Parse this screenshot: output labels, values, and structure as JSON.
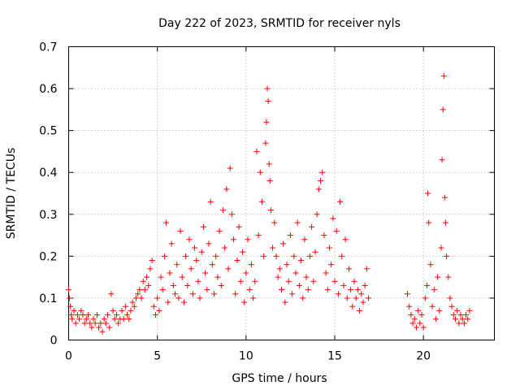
{
  "chart_data": {
    "type": "scatter",
    "title": "Day 222 of 2023, SRMTID for receiver nyls",
    "xlabel": "GPS time / hours",
    "ylabel": "SRMTID / TECUs",
    "xlim": [
      0,
      24
    ],
    "ylim": [
      0,
      0.7
    ],
    "xticks": [
      0,
      5,
      10,
      15,
      20
    ],
    "yticks": [
      0,
      0.1,
      0.2,
      0.3,
      0.4,
      0.5,
      0.6,
      0.7
    ],
    "xtick_labels": [
      "0",
      "5",
      "10",
      "15",
      "20"
    ],
    "ytick_labels": [
      "0",
      "0.1",
      "0.2",
      "0.3",
      "0.4",
      "0.5",
      "0.6",
      "0.7"
    ],
    "grid": true,
    "marker": "+",
    "color": "#ff0000",
    "series": [
      {
        "name": "SRMTID",
        "points": [
          [
            0.0,
            0.12
          ],
          [
            0.05,
            0.1
          ],
          [
            0.1,
            0.08
          ],
          [
            0.15,
            0.06
          ],
          [
            0.2,
            0.05
          ],
          [
            0.3,
            0.07
          ],
          [
            0.4,
            0.04
          ],
          [
            0.5,
            0.06
          ],
          [
            0.6,
            0.05
          ],
          [
            0.7,
            0.07
          ],
          [
            0.8,
            0.06
          ],
          [
            0.9,
            0.04
          ],
          [
            1.0,
            0.05
          ],
          [
            1.1,
            0.06
          ],
          [
            1.2,
            0.04
          ],
          [
            1.3,
            0.03
          ],
          [
            1.4,
            0.05
          ],
          [
            1.5,
            0.04
          ],
          [
            1.6,
            0.06
          ],
          [
            1.7,
            0.03
          ],
          [
            1.8,
            0.04
          ],
          [
            1.9,
            0.02
          ],
          [
            2.0,
            0.05
          ],
          [
            2.1,
            0.04
          ],
          [
            2.2,
            0.06
          ],
          [
            2.3,
            0.03
          ],
          [
            2.4,
            0.11
          ],
          [
            2.5,
            0.07
          ],
          [
            2.6,
            0.05
          ],
          [
            2.7,
            0.06
          ],
          [
            2.8,
            0.04
          ],
          [
            2.9,
            0.05
          ],
          [
            3.0,
            0.07
          ],
          [
            3.1,
            0.05
          ],
          [
            3.2,
            0.08
          ],
          [
            3.3,
            0.06
          ],
          [
            3.4,
            0.05
          ],
          [
            3.5,
            0.07
          ],
          [
            3.6,
            0.09
          ],
          [
            3.7,
            0.08
          ],
          [
            3.8,
            0.1
          ],
          [
            3.9,
            0.11
          ],
          [
            4.0,
            0.12
          ],
          [
            4.1,
            0.1
          ],
          [
            4.2,
            0.14
          ],
          [
            4.3,
            0.12
          ],
          [
            4.4,
            0.15
          ],
          [
            4.5,
            0.13
          ],
          [
            4.6,
            0.17
          ],
          [
            4.7,
            0.19
          ],
          [
            4.8,
            0.08
          ],
          [
            4.9,
            0.06
          ],
          [
            5.0,
            0.1
          ],
          [
            5.1,
            0.07
          ],
          [
            5.2,
            0.15
          ],
          [
            5.3,
            0.12
          ],
          [
            5.4,
            0.2
          ],
          [
            5.5,
            0.28
          ],
          [
            5.6,
            0.09
          ],
          [
            5.7,
            0.16
          ],
          [
            5.8,
            0.23
          ],
          [
            5.9,
            0.13
          ],
          [
            6.0,
            0.11
          ],
          [
            6.1,
            0.18
          ],
          [
            6.2,
            0.1
          ],
          [
            6.3,
            0.26
          ],
          [
            6.4,
            0.15
          ],
          [
            6.5,
            0.09
          ],
          [
            6.6,
            0.2
          ],
          [
            6.7,
            0.13
          ],
          [
            6.8,
            0.24
          ],
          [
            6.9,
            0.17
          ],
          [
            7.0,
            0.11
          ],
          [
            7.1,
            0.22
          ],
          [
            7.2,
            0.19
          ],
          [
            7.3,
            0.14
          ],
          [
            7.4,
            0.1
          ],
          [
            7.5,
            0.21
          ],
          [
            7.6,
            0.27
          ],
          [
            7.7,
            0.16
          ],
          [
            7.8,
            0.12
          ],
          [
            7.9,
            0.23
          ],
          [
            8.0,
            0.33
          ],
          [
            8.1,
            0.18
          ],
          [
            8.2,
            0.11
          ],
          [
            8.3,
            0.2
          ],
          [
            8.4,
            0.15
          ],
          [
            8.5,
            0.26
          ],
          [
            8.6,
            0.13
          ],
          [
            8.7,
            0.31
          ],
          [
            8.8,
            0.22
          ],
          [
            8.9,
            0.36
          ],
          [
            9.0,
            0.17
          ],
          [
            9.1,
            0.41
          ],
          [
            9.2,
            0.3
          ],
          [
            9.3,
            0.24
          ],
          [
            9.4,
            0.11
          ],
          [
            9.5,
            0.19
          ],
          [
            9.6,
            0.27
          ],
          [
            9.7,
            0.14
          ],
          [
            9.8,
            0.21
          ],
          [
            9.9,
            0.09
          ],
          [
            10.0,
            0.16
          ],
          [
            10.1,
            0.24
          ],
          [
            10.2,
            0.12
          ],
          [
            10.3,
            0.18
          ],
          [
            10.4,
            0.1
          ],
          [
            10.5,
            0.14
          ],
          [
            10.6,
            0.45
          ],
          [
            10.7,
            0.25
          ],
          [
            10.8,
            0.4
          ],
          [
            10.9,
            0.33
          ],
          [
            11.0,
            0.2
          ],
          [
            11.1,
            0.47
          ],
          [
            11.15,
            0.52
          ],
          [
            11.2,
            0.6
          ],
          [
            11.25,
            0.57
          ],
          [
            11.3,
            0.42
          ],
          [
            11.35,
            0.38
          ],
          [
            11.4,
            0.31
          ],
          [
            11.5,
            0.22
          ],
          [
            11.6,
            0.28
          ],
          [
            11.7,
            0.2
          ],
          [
            11.8,
            0.15
          ],
          [
            11.9,
            0.17
          ],
          [
            12.0,
            0.12
          ],
          [
            12.1,
            0.23
          ],
          [
            12.2,
            0.09
          ],
          [
            12.3,
            0.18
          ],
          [
            12.4,
            0.14
          ],
          [
            12.5,
            0.25
          ],
          [
            12.6,
            0.11
          ],
          [
            12.7,
            0.2
          ],
          [
            12.8,
            0.16
          ],
          [
            12.9,
            0.28
          ],
          [
            13.0,
            0.13
          ],
          [
            13.1,
            0.19
          ],
          [
            13.2,
            0.1
          ],
          [
            13.3,
            0.24
          ],
          [
            13.4,
            0.15
          ],
          [
            13.5,
            0.12
          ],
          [
            13.6,
            0.2
          ],
          [
            13.7,
            0.27
          ],
          [
            13.8,
            0.14
          ],
          [
            13.9,
            0.21
          ],
          [
            14.0,
            0.3
          ],
          [
            14.1,
            0.36
          ],
          [
            14.2,
            0.38
          ],
          [
            14.3,
            0.4
          ],
          [
            14.4,
            0.25
          ],
          [
            14.5,
            0.16
          ],
          [
            14.6,
            0.12
          ],
          [
            14.7,
            0.22
          ],
          [
            14.8,
            0.18
          ],
          [
            14.9,
            0.29
          ],
          [
            15.0,
            0.14
          ],
          [
            15.1,
            0.26
          ],
          [
            15.2,
            0.11
          ],
          [
            15.3,
            0.33
          ],
          [
            15.4,
            0.2
          ],
          [
            15.5,
            0.13
          ],
          [
            15.6,
            0.24
          ],
          [
            15.7,
            0.1
          ],
          [
            15.8,
            0.17
          ],
          [
            15.9,
            0.12
          ],
          [
            16.0,
            0.08
          ],
          [
            16.1,
            0.14
          ],
          [
            16.2,
            0.1
          ],
          [
            16.3,
            0.12
          ],
          [
            16.4,
            0.07
          ],
          [
            16.5,
            0.11
          ],
          [
            16.6,
            0.09
          ],
          [
            16.7,
            0.13
          ],
          [
            16.8,
            0.17
          ],
          [
            16.9,
            0.1
          ],
          [
            19.1,
            0.11
          ],
          [
            19.2,
            0.08
          ],
          [
            19.3,
            0.06
          ],
          [
            19.4,
            0.04
          ],
          [
            19.5,
            0.05
          ],
          [
            19.6,
            0.03
          ],
          [
            19.7,
            0.07
          ],
          [
            19.8,
            0.04
          ],
          [
            19.9,
            0.06
          ],
          [
            20.0,
            0.03
          ],
          [
            20.1,
            0.1
          ],
          [
            20.2,
            0.13
          ],
          [
            20.25,
            0.35
          ],
          [
            20.3,
            0.28
          ],
          [
            20.4,
            0.18
          ],
          [
            20.5,
            0.08
          ],
          [
            20.6,
            0.12
          ],
          [
            20.7,
            0.05
          ],
          [
            20.8,
            0.15
          ],
          [
            20.9,
            0.07
          ],
          [
            21.0,
            0.22
          ],
          [
            21.05,
            0.43
          ],
          [
            21.1,
            0.55
          ],
          [
            21.15,
            0.63
          ],
          [
            21.2,
            0.34
          ],
          [
            21.25,
            0.28
          ],
          [
            21.3,
            0.2
          ],
          [
            21.4,
            0.15
          ],
          [
            21.5,
            0.1
          ],
          [
            21.6,
            0.08
          ],
          [
            21.7,
            0.06
          ],
          [
            21.8,
            0.05
          ],
          [
            21.9,
            0.07
          ],
          [
            22.0,
            0.04
          ],
          [
            22.1,
            0.06
          ],
          [
            22.2,
            0.05
          ],
          [
            22.3,
            0.04
          ],
          [
            22.4,
            0.06
          ],
          [
            22.5,
            0.05
          ],
          [
            22.6,
            0.07
          ]
        ]
      }
    ]
  }
}
